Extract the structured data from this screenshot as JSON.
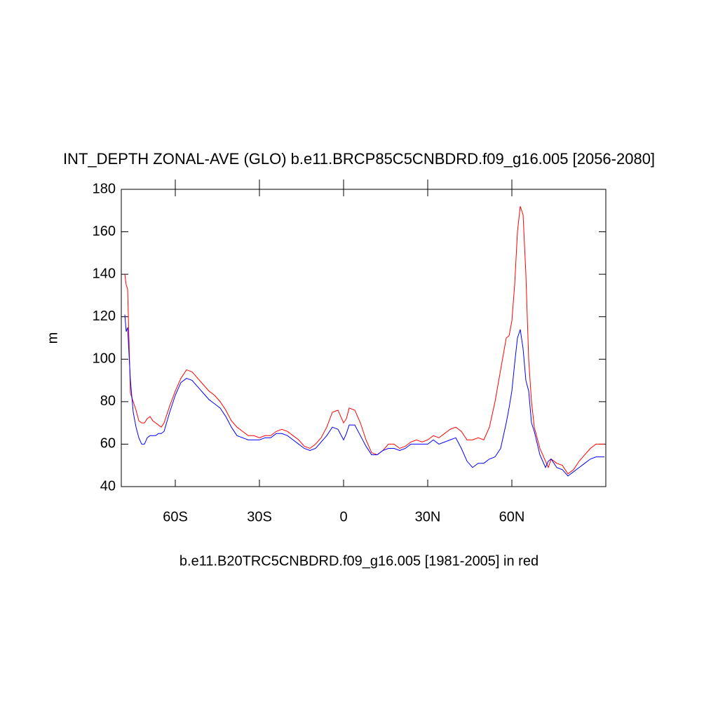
{
  "chart_data": {
    "type": "line",
    "title": "INT_DEPTH ZONAL-AVE (GLO) b.e11.BRCP85C5CNBDRD.f09_g16.005 [2056-2080]",
    "x_label": "b.e11.B20TRC5CNBDRD.f09_g16.005 [1981-2005] in red",
    "y_label": "m",
    "x": [
      -78,
      -77.5,
      -77,
      -76,
      -75,
      -74,
      -73,
      -72,
      -71,
      -70,
      -69,
      -68,
      -67,
      -66,
      -65,
      -64,
      -62,
      -60,
      -58,
      -56,
      -54,
      -52,
      -50,
      -48,
      -46,
      -44,
      -42,
      -40,
      -38,
      -36,
      -34,
      -32,
      -30,
      -28,
      -26,
      -24,
      -22,
      -20,
      -18,
      -16,
      -14,
      -12,
      -10,
      -8,
      -6,
      -4,
      -2,
      0,
      1,
      2,
      4,
      6,
      8,
      10,
      12,
      14,
      16,
      18,
      20,
      22,
      24,
      26,
      28,
      30,
      32,
      34,
      36,
      38,
      40,
      42,
      44,
      46,
      48,
      50,
      52,
      54,
      56,
      58,
      59,
      60,
      61,
      62,
      63,
      64,
      65,
      66,
      67,
      68,
      70,
      72,
      73,
      74,
      76,
      78,
      80,
      82,
      84,
      86,
      88,
      90,
      92,
      93
    ],
    "series": [
      {
        "color": "#ff0000",
        "values": [
          140,
          135,
          133,
          84,
          80,
          76,
          71,
          70,
          70,
          72,
          73,
          71,
          70,
          69,
          68,
          70,
          78,
          85,
          91,
          95,
          94,
          91,
          88,
          85,
          83,
          80,
          76,
          71,
          68,
          66,
          64,
          64,
          63,
          64,
          64,
          66,
          67,
          66,
          64,
          62,
          59,
          58,
          60,
          63,
          68,
          75,
          76,
          70,
          72,
          77,
          76,
          70,
          62,
          56,
          55,
          57,
          60,
          60,
          58,
          59,
          61,
          62,
          61,
          62,
          64,
          63,
          65,
          67,
          68,
          66,
          62,
          62,
          63,
          62,
          68,
          80,
          95,
          110,
          111,
          118,
          135,
          160,
          172,
          168,
          140,
          100,
          80,
          68,
          58,
          52,
          49,
          53,
          51,
          50,
          46,
          48,
          52,
          55,
          58,
          60,
          60,
          60
        ]
      },
      {
        "color": "#0000ff",
        "values": [
          121,
          113,
          115,
          90,
          75,
          68,
          63,
          60,
          60,
          63,
          64,
          64,
          64,
          65,
          65,
          66,
          75,
          83,
          89,
          91,
          90,
          87,
          84,
          81,
          79,
          77,
          73,
          68,
          64,
          63,
          62,
          62,
          62,
          63,
          63,
          65,
          65,
          64,
          62,
          60,
          58,
          57,
          58,
          61,
          64,
          68,
          67,
          62,
          65,
          69,
          69,
          64,
          59,
          55,
          55,
          57,
          58,
          58,
          57,
          58,
          60,
          60,
          60,
          60,
          62,
          60,
          61,
          62,
          63,
          58,
          52,
          49,
          51,
          51,
          53,
          54,
          58,
          70,
          77,
          85,
          98,
          110,
          114,
          105,
          90,
          85,
          70,
          66,
          55,
          49,
          52,
          53,
          49,
          48,
          45,
          47,
          49,
          51,
          53,
          54,
          54,
          54
        ]
      }
    ],
    "xlim": [
      -79.25,
      93.5
    ],
    "xticks": [
      {
        "value": -60,
        "label": "60S"
      },
      {
        "value": -30,
        "label": "30S"
      },
      0,
      {
        "value": 30,
        "label": "30N"
      },
      {
        "value": 60,
        "label": "60N"
      }
    ],
    "ylim": [
      40,
      180
    ],
    "yticks": [
      40,
      60,
      80,
      100,
      120,
      140,
      160,
      180
    ]
  }
}
